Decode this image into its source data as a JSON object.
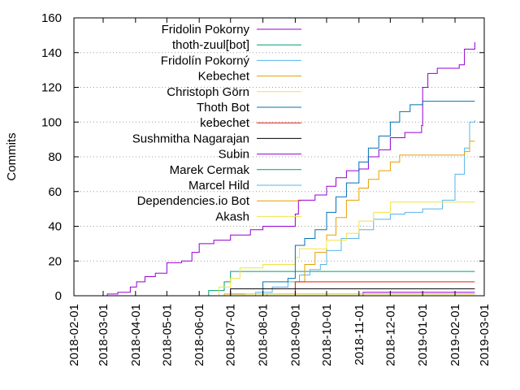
{
  "chart_data": {
    "type": "line",
    "title": "",
    "xlabel": "",
    "ylabel": "Commits",
    "xlim": [
      "2018-02-01",
      "2019-03-01"
    ],
    "ylim": [
      0,
      160
    ],
    "y_ticks": [
      0,
      20,
      40,
      60,
      80,
      100,
      120,
      140,
      160
    ],
    "x_ticks": [
      "2018-02-01",
      "2018-03-01",
      "2018-04-01",
      "2018-05-01",
      "2018-06-01",
      "2018-07-01",
      "2018-08-01",
      "2018-09-01",
      "2018-10-01",
      "2018-11-01",
      "2018-12-01",
      "2019-01-01",
      "2019-02-01",
      "2019-03-01"
    ],
    "grid": "horizontal-dotted",
    "legend_position": "top-left",
    "line_style": "step",
    "series": [
      {
        "name": "Fridolin Pokorny",
        "color": "#9400d3",
        "points": [
          [
            "2018-03-01",
            0
          ],
          [
            "2018-03-05",
            1
          ],
          [
            "2018-03-15",
            2
          ],
          [
            "2018-03-27",
            5
          ],
          [
            "2018-04-02",
            8
          ],
          [
            "2018-04-10",
            11
          ],
          [
            "2018-04-20",
            13
          ],
          [
            "2018-05-01",
            19
          ],
          [
            "2018-05-15",
            20
          ],
          [
            "2018-05-25",
            25
          ],
          [
            "2018-06-01",
            30
          ],
          [
            "2018-06-15",
            32
          ],
          [
            "2018-07-01",
            35
          ],
          [
            "2018-07-20",
            38
          ],
          [
            "2018-08-01",
            40
          ],
          [
            "2018-08-30",
            40
          ],
          [
            "2018-09-01",
            47
          ],
          [
            "2018-09-04",
            55
          ],
          [
            "2018-09-20",
            58
          ],
          [
            "2018-10-01",
            63
          ],
          [
            "2018-10-10",
            68
          ],
          [
            "2018-10-20",
            72
          ],
          [
            "2018-11-01",
            73
          ],
          [
            "2018-11-10",
            80
          ],
          [
            "2018-11-20",
            84
          ],
          [
            "2018-12-01",
            91
          ],
          [
            "2018-12-15",
            94
          ],
          [
            "2018-12-31",
            98
          ],
          [
            "2019-01-01",
            120
          ],
          [
            "2019-01-06",
            128
          ],
          [
            "2019-01-15",
            131
          ],
          [
            "2019-02-05",
            133
          ],
          [
            "2019-02-10",
            142
          ],
          [
            "2019-02-20",
            146
          ]
        ]
      },
      {
        "name": "thoth-zuul[bot]",
        "color": "#009e73",
        "points": [
          [
            "2018-03-01",
            0
          ],
          [
            "2018-06-01",
            0
          ],
          [
            "2018-06-10",
            3
          ],
          [
            "2018-06-25",
            8
          ],
          [
            "2018-07-01",
            14
          ],
          [
            "2018-08-15",
            14
          ],
          [
            "2018-09-01",
            14
          ],
          [
            "2019-02-20",
            14
          ]
        ]
      },
      {
        "name": "Fridolín Pokorný",
        "color": "#56b4e9",
        "points": [
          [
            "2018-03-01",
            0
          ],
          [
            "2018-07-15",
            0
          ],
          [
            "2018-07-25",
            2
          ],
          [
            "2018-08-10",
            5
          ],
          [
            "2018-08-25",
            8
          ],
          [
            "2018-09-05",
            12
          ],
          [
            "2018-09-15",
            15
          ],
          [
            "2018-09-25",
            18
          ],
          [
            "2018-10-01",
            26
          ],
          [
            "2018-10-15",
            33
          ],
          [
            "2018-11-01",
            38
          ],
          [
            "2018-11-15",
            44
          ],
          [
            "2018-12-01",
            47
          ],
          [
            "2018-12-15",
            48
          ],
          [
            "2019-01-01",
            50
          ],
          [
            "2019-01-20",
            55
          ],
          [
            "2019-02-01",
            70
          ],
          [
            "2019-02-10",
            85
          ],
          [
            "2019-02-15",
            100
          ],
          [
            "2019-02-20",
            101
          ]
        ]
      },
      {
        "name": "Kebechet",
        "color": "#e69f00",
        "points": [
          [
            "2018-03-01",
            0
          ],
          [
            "2018-08-25",
            0
          ],
          [
            "2018-09-01",
            8
          ],
          [
            "2018-09-10",
            18
          ],
          [
            "2018-09-20",
            25
          ],
          [
            "2018-10-01",
            35
          ],
          [
            "2018-10-10",
            45
          ],
          [
            "2018-10-20",
            55
          ],
          [
            "2018-11-01",
            62
          ],
          [
            "2018-11-10",
            67
          ],
          [
            "2018-11-20",
            72
          ],
          [
            "2018-12-01",
            77
          ],
          [
            "2018-12-10",
            81
          ],
          [
            "2019-02-01",
            81
          ],
          [
            "2019-02-10",
            83
          ],
          [
            "2019-02-15",
            89
          ],
          [
            "2019-02-20",
            89
          ]
        ]
      },
      {
        "name": "Christoph Görn",
        "color": "#f0e442",
        "points": [
          [
            "2018-03-01",
            0
          ],
          [
            "2018-06-15",
            0
          ],
          [
            "2018-06-20",
            5
          ],
          [
            "2018-07-01",
            10
          ],
          [
            "2018-07-10",
            16
          ],
          [
            "2018-08-01",
            18
          ],
          [
            "2018-08-28",
            18
          ],
          [
            "2018-09-01",
            22
          ],
          [
            "2018-09-05",
            27
          ],
          [
            "2018-10-01",
            32
          ],
          [
            "2018-10-20",
            36
          ],
          [
            "2018-11-01",
            43
          ],
          [
            "2018-11-15",
            48
          ],
          [
            "2018-12-01",
            54
          ],
          [
            "2019-02-20",
            54
          ]
        ]
      },
      {
        "name": "Thoth Bot",
        "color": "#0072b2",
        "points": [
          [
            "2018-03-01",
            0
          ],
          [
            "2018-07-25",
            0
          ],
          [
            "2018-08-01",
            8
          ],
          [
            "2018-08-25",
            10
          ],
          [
            "2018-09-01",
            29
          ],
          [
            "2018-09-10",
            33
          ],
          [
            "2018-09-20",
            38
          ],
          [
            "2018-10-01",
            48
          ],
          [
            "2018-10-10",
            57
          ],
          [
            "2018-10-20",
            65
          ],
          [
            "2018-11-01",
            77
          ],
          [
            "2018-11-10",
            85
          ],
          [
            "2018-11-20",
            92
          ],
          [
            "2018-12-01",
            100
          ],
          [
            "2018-12-10",
            106
          ],
          [
            "2018-12-20",
            110
          ],
          [
            "2019-01-01",
            112
          ],
          [
            "2019-02-20",
            112
          ]
        ]
      },
      {
        "name": "kebechet",
        "color": "#e51e10",
        "points": [
          [
            "2018-03-01",
            0
          ],
          [
            "2018-08-25",
            0
          ],
          [
            "2018-09-01",
            8
          ],
          [
            "2019-02-20",
            8
          ]
        ]
      },
      {
        "name": "Sushmitha Nagarajan",
        "color": "#000000",
        "points": [
          [
            "2018-03-01",
            0
          ],
          [
            "2018-06-25",
            0
          ],
          [
            "2018-07-01",
            4
          ],
          [
            "2019-02-20",
            4
          ]
        ]
      },
      {
        "name": "Subin",
        "color": "#9400d3",
        "points": [
          [
            "2018-03-01",
            0
          ],
          [
            "2018-11-01",
            0
          ],
          [
            "2018-11-05",
            2
          ],
          [
            "2019-02-20",
            2
          ]
        ]
      },
      {
        "name": "Marek Cermak",
        "color": "#009e73",
        "points": [
          [
            "2018-03-01",
            0
          ],
          [
            "2018-06-20",
            0
          ],
          [
            "2018-07-01",
            1
          ],
          [
            "2019-02-20",
            1
          ]
        ]
      },
      {
        "name": "Marcel Hild",
        "color": "#56b4e9",
        "points": [
          [
            "2018-03-01",
            0
          ],
          [
            "2018-08-01",
            0
          ],
          [
            "2018-08-05",
            1
          ],
          [
            "2019-02-20",
            1
          ]
        ]
      },
      {
        "name": "Dependencies.io Bot",
        "color": "#e69f00",
        "points": [
          [
            "2018-03-01",
            0
          ],
          [
            "2018-06-20",
            0
          ],
          [
            "2018-06-25",
            1
          ],
          [
            "2019-02-20",
            1
          ]
        ]
      },
      {
        "name": "Akash",
        "color": "#f0e442",
        "points": [
          [
            "2018-03-01",
            0
          ],
          [
            "2018-07-10",
            0
          ],
          [
            "2018-07-15",
            1
          ],
          [
            "2019-02-20",
            1
          ]
        ]
      }
    ]
  }
}
